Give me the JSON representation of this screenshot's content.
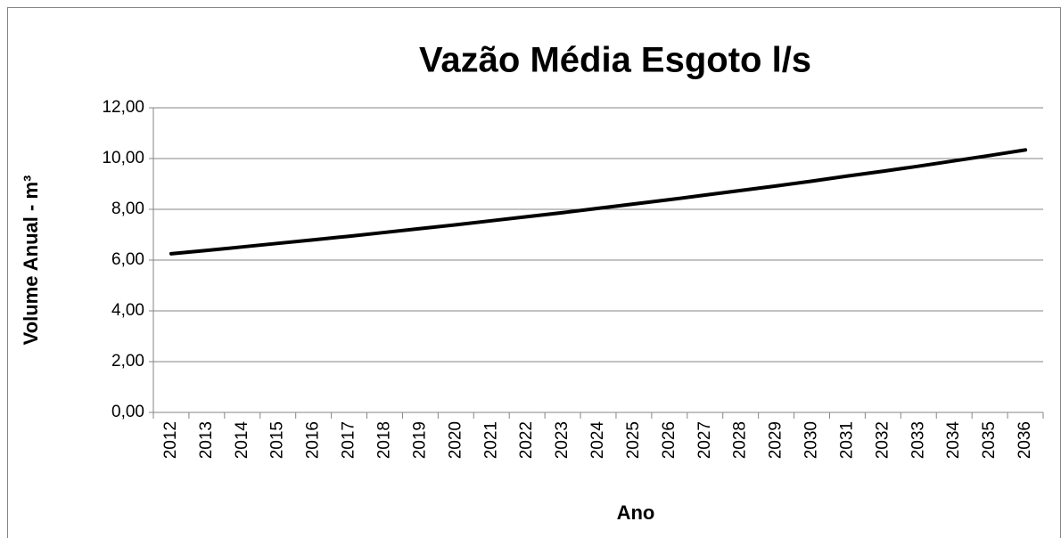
{
  "chart_data": {
    "type": "line",
    "title": "Vazão Média Esgoto l/s",
    "y_label": "Volume Anual - m³",
    "x_label": "Ano",
    "categories": [
      "2012",
      "2013",
      "2014",
      "2015",
      "2016",
      "2017",
      "2018",
      "2019",
      "2020",
      "2021",
      "2022",
      "2023",
      "2024",
      "2025",
      "2026",
      "2027",
      "2028",
      "2029",
      "2030",
      "2031",
      "2032",
      "2033",
      "2034",
      "2035",
      "2036"
    ],
    "series": [
      {
        "name": "Vazão Média Esgoto l/s",
        "color": "#000000",
        "values": [
          6.25,
          6.38,
          6.52,
          6.66,
          6.8,
          6.94,
          7.09,
          7.24,
          7.39,
          7.55,
          7.71,
          7.87,
          8.04,
          8.21,
          8.38,
          8.56,
          8.74,
          8.92,
          9.11,
          9.31,
          9.5,
          9.7,
          9.91,
          10.12,
          10.34
        ]
      }
    ],
    "ylim": [
      0,
      12
    ],
    "yticks": [
      {
        "value": 0,
        "label": "0,00"
      },
      {
        "value": 2,
        "label": "2,00"
      },
      {
        "value": 4,
        "label": "4,00"
      },
      {
        "value": 6,
        "label": "6,00"
      },
      {
        "value": 8,
        "label": "8,00"
      },
      {
        "value": 10,
        "label": "10,00"
      },
      {
        "value": 12,
        "label": "12,00"
      }
    ],
    "grid": true
  }
}
